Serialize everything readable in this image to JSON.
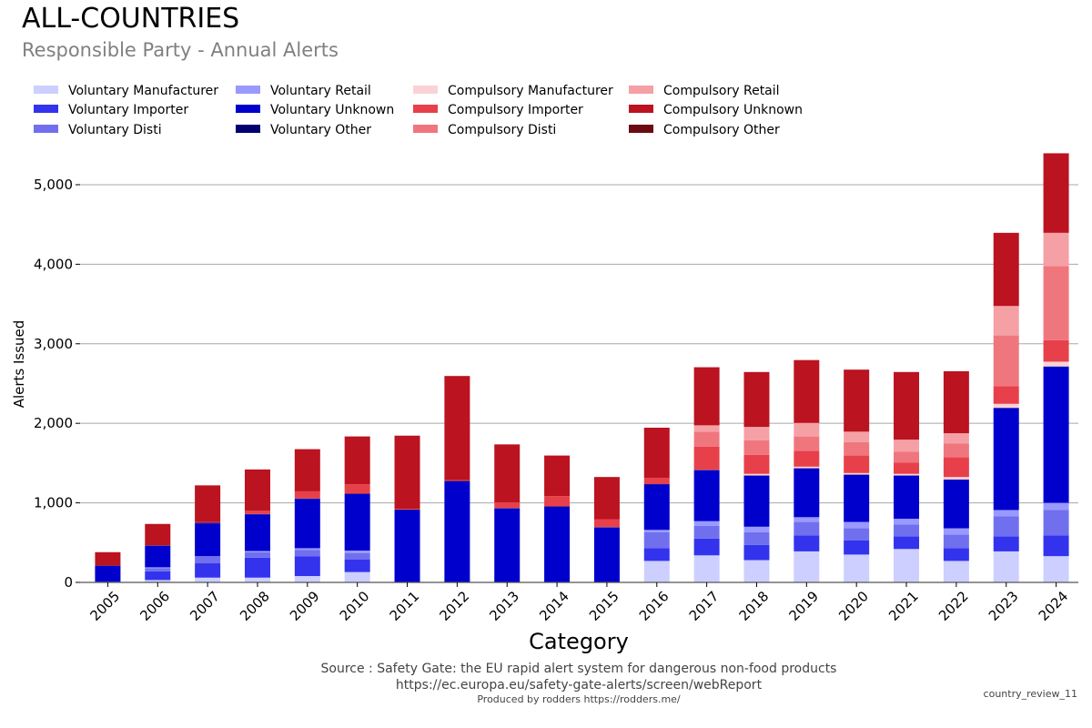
{
  "header": {
    "title": "ALL-COUNTRIES",
    "subtitle": "Responsible Party - Annual Alerts"
  },
  "footer": {
    "source_line_1": "Source : Safety Gate: the EU rapid alert system for dangerous non-food products",
    "source_line_2": "https://ec.europa.eu/safety-gate-alerts/screen/webReport",
    "producer": "Produced by rodders https://rodders.me/",
    "chart_id": "country_review_11"
  },
  "chart_data": {
    "type": "bar",
    "stacked": true,
    "title": "ALL-COUNTRIES",
    "subtitle": "Responsible Party - Annual Alerts",
    "xlabel": "Category",
    "ylabel": "Alerts Issued",
    "ylim": [
      0,
      5400
    ],
    "yticks": [
      0,
      1000,
      2000,
      3000,
      4000,
      5000
    ],
    "ytick_labels": [
      "0",
      "1,000",
      "2,000",
      "3,000",
      "4,000",
      "5,000"
    ],
    "grid": true,
    "legend_position": "top-left",
    "categories": [
      "2005",
      "2006",
      "2007",
      "2008",
      "2009",
      "2010",
      "2011",
      "2012",
      "2013",
      "2014",
      "2015",
      "2016",
      "2017",
      "2018",
      "2019",
      "2020",
      "2021",
      "2022",
      "2023",
      "2024"
    ],
    "series": [
      {
        "name": "Voluntary Manufacturer",
        "color": "#cccfff",
        "values": [
          5,
          30,
          60,
          60,
          80,
          130,
          0,
          0,
          0,
          0,
          0,
          270,
          340,
          280,
          390,
          350,
          420,
          270,
          390,
          330
        ]
      },
      {
        "name": "Voluntary Importer",
        "color": "#3333ee",
        "values": [
          5,
          110,
          180,
          250,
          250,
          160,
          0,
          0,
          0,
          0,
          0,
          160,
          210,
          190,
          200,
          180,
          160,
          160,
          190,
          260
        ]
      },
      {
        "name": "Voluntary Disti",
        "color": "#7070ee",
        "values": [
          0,
          40,
          90,
          70,
          80,
          80,
          0,
          0,
          0,
          0,
          0,
          200,
          160,
          160,
          170,
          150,
          150,
          170,
          250,
          320
        ]
      },
      {
        "name": "Voluntary Retail",
        "color": "#9999ff",
        "values": [
          0,
          10,
          0,
          15,
          20,
          30,
          0,
          0,
          0,
          0,
          0,
          30,
          60,
          70,
          60,
          80,
          70,
          80,
          80,
          90
        ]
      },
      {
        "name": "Voluntary Unknown",
        "color": "#0000cc",
        "values": [
          200,
          270,
          410,
          460,
          620,
          710,
          910,
          1270,
          930,
          950,
          690,
          570,
          640,
          640,
          610,
          590,
          540,
          610,
          1280,
          1710
        ]
      },
      {
        "name": "Voluntary Other",
        "color": "#00006f",
        "values": [
          0,
          5,
          10,
          5,
          5,
          5,
          5,
          5,
          5,
          5,
          5,
          5,
          5,
          5,
          5,
          5,
          5,
          5,
          5,
          5
        ]
      },
      {
        "name": "Compulsory Manufacturer",
        "color": "#fad2d6",
        "values": [
          0,
          0,
          0,
          0,
          0,
          0,
          0,
          0,
          0,
          0,
          0,
          0,
          0,
          20,
          20,
          20,
          20,
          30,
          50,
          60
        ]
      },
      {
        "name": "Compulsory Importer",
        "color": "#e8404a",
        "values": [
          0,
          0,
          10,
          40,
          90,
          120,
          10,
          10,
          70,
          130,
          100,
          80,
          290,
          240,
          200,
          220,
          140,
          250,
          220,
          270
        ]
      },
      {
        "name": "Compulsory Disti",
        "color": "#f0767e",
        "values": [
          0,
          0,
          0,
          0,
          0,
          0,
          0,
          0,
          0,
          0,
          0,
          0,
          190,
          180,
          180,
          170,
          140,
          170,
          640,
          930
        ]
      },
      {
        "name": "Compulsory Retail",
        "color": "#f5a0a5",
        "values": [
          0,
          0,
          0,
          0,
          0,
          0,
          0,
          0,
          0,
          0,
          0,
          0,
          80,
          170,
          170,
          130,
          150,
          130,
          370,
          420
        ]
      },
      {
        "name": "Compulsory Unknown",
        "color": "#bb1320",
        "values": [
          170,
          270,
          460,
          520,
          530,
          600,
          920,
          1310,
          730,
          510,
          530,
          630,
          730,
          690,
          790,
          780,
          850,
          780,
          920,
          1000
        ]
      },
      {
        "name": "Compulsory Other",
        "color": "#6b0a10",
        "values": [
          0,
          0,
          0,
          0,
          0,
          0,
          0,
          0,
          0,
          0,
          0,
          0,
          0,
          0,
          0,
          0,
          0,
          0,
          0,
          0
        ]
      }
    ]
  }
}
